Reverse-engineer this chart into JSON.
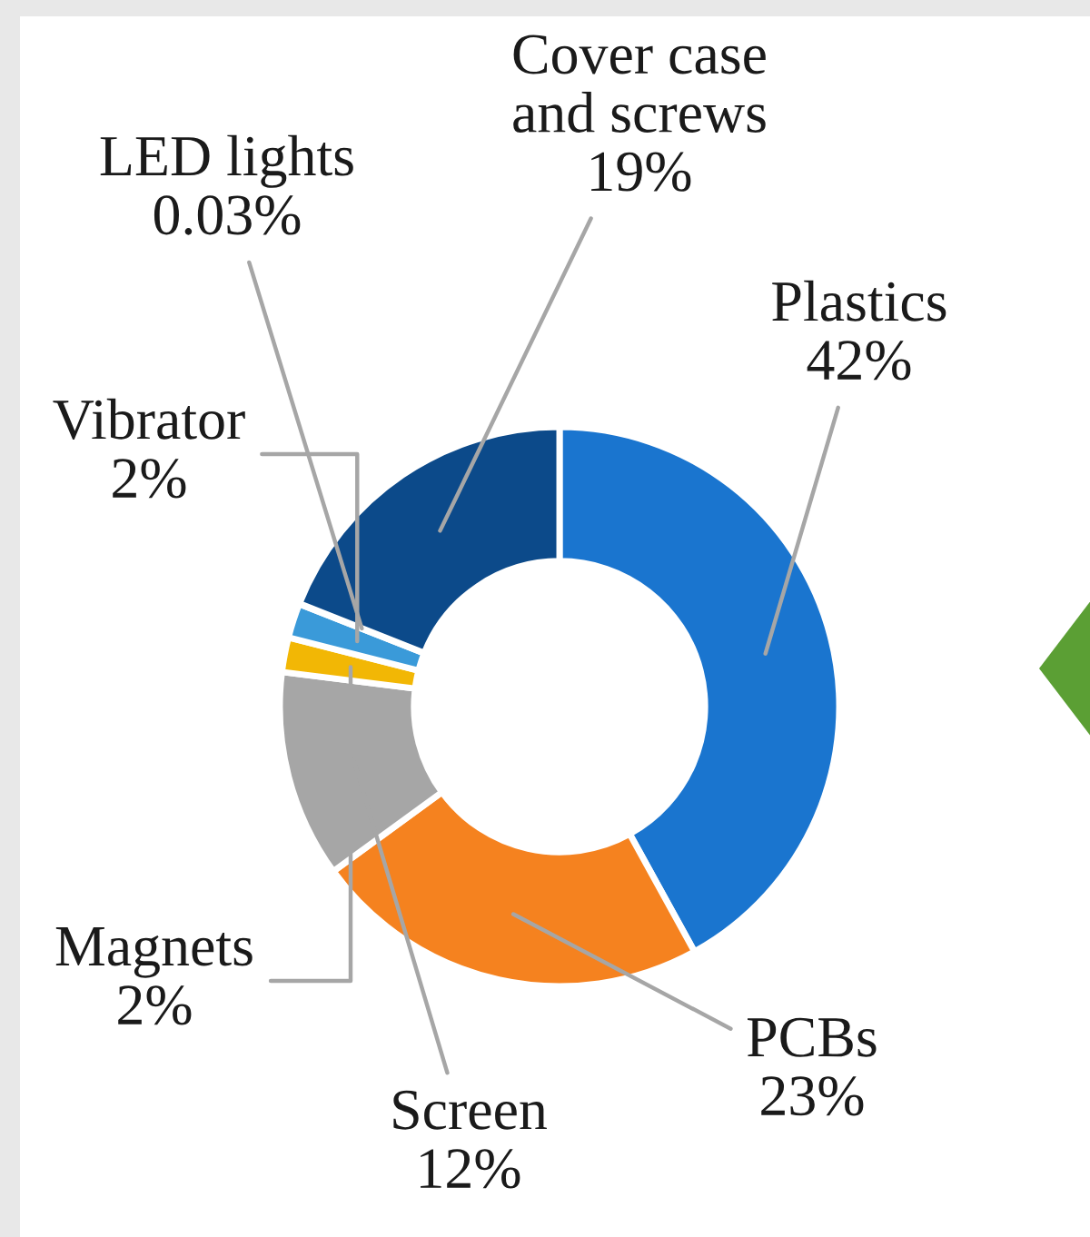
{
  "chart_data": {
    "type": "donut",
    "categories": [
      "Plastics",
      "PCBs",
      "Screen",
      "Magnets",
      "Vibrator",
      "LED lights",
      "Cover case and screws"
    ],
    "values": [
      42,
      23,
      12,
      2,
      2,
      0.03,
      19
    ],
    "colors": [
      "#1a75cf",
      "#f5821f",
      "#a6a6a6",
      "#f2b705",
      "#3a9ad9",
      "#5aa02c",
      "#0c4a8a"
    ],
    "value_labels": [
      "42%",
      "23%",
      "12%",
      "2%",
      "2%",
      "0.03%",
      "19%"
    ]
  }
}
